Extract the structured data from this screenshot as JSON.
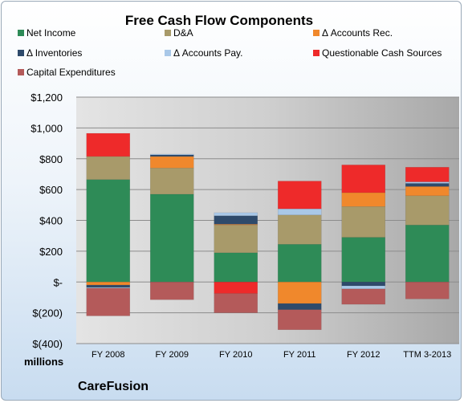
{
  "chart_data": {
    "type": "bar",
    "stacked": true,
    "title": "Free Cash Flow Components",
    "units_label": "millions",
    "company": "CareFusion",
    "categories": [
      "FY 2008",
      "FY 2009",
      "FY 2010",
      "FY 2011",
      "FY 2012",
      "TTM 3-2013"
    ],
    "ylim": [
      -400,
      1200
    ],
    "yticks": [
      -400,
      -200,
      0,
      200,
      400,
      600,
      800,
      1000,
      1200
    ],
    "ytick_labels": [
      "$(400)",
      "$(200)",
      "$-",
      "$200",
      "$400",
      "$600",
      "$800",
      "$1,000",
      "$1,200"
    ],
    "grid": true,
    "legend_position": "top",
    "series": [
      {
        "name": "Net Income",
        "color": "#2e8b57",
        "values": [
          665,
          570,
          190,
          245,
          290,
          370
        ]
      },
      {
        "name": "D&A",
        "color": "#a89a6a",
        "values": [
          150,
          170,
          180,
          190,
          200,
          190
        ]
      },
      {
        "name": "Δ Accounts Rec.",
        "color": "#f0882c",
        "values": [
          -20,
          75,
          5,
          -140,
          90,
          60
        ]
      },
      {
        "name": "Δ Inventories",
        "color": "#2e4a6b",
        "values": [
          -15,
          10,
          55,
          -40,
          -25,
          20
        ]
      },
      {
        "name": "Δ Accounts Pay.",
        "color": "#a9c8e8",
        "values": [
          -5,
          5,
          20,
          40,
          -20,
          10
        ]
      },
      {
        "name": "Questionable Cash Sources",
        "color": "#ee2a2a",
        "values": [
          150,
          0,
          -75,
          180,
          180,
          95
        ]
      },
      {
        "name": "Capital Expenditures",
        "color": "#b45a5a",
        "values": [
          -180,
          -115,
          -125,
          -130,
          -100,
          -110
        ]
      }
    ]
  }
}
